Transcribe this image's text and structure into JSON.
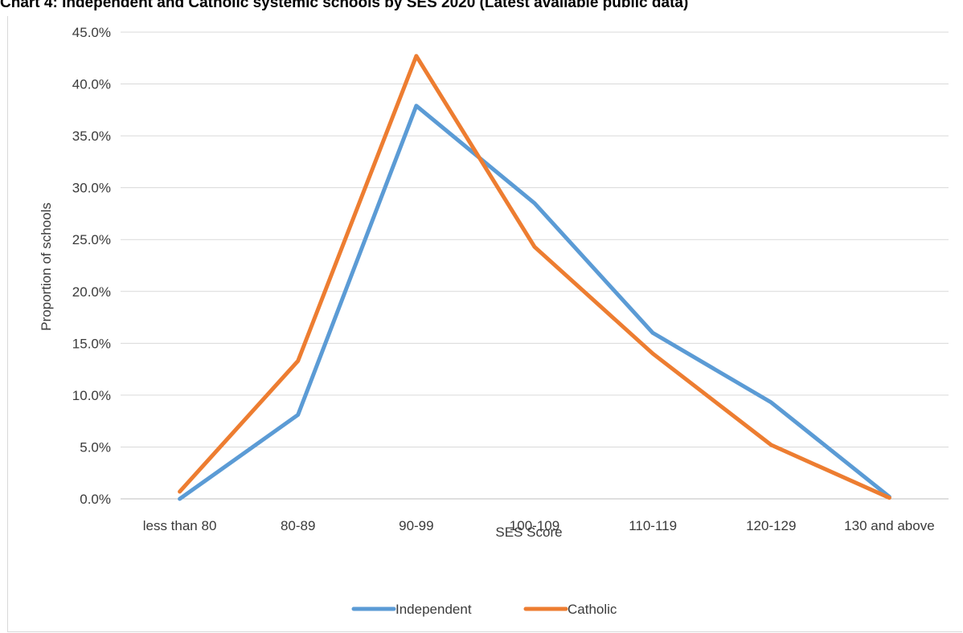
{
  "chart_data": {
    "type": "line",
    "title": "Chart 4: Independent and Catholic systemic schools by SES 2020 (Latest available public data)",
    "xlabel": "SES Score",
    "ylabel": "Proportion of schools",
    "categories": [
      "less than 80",
      "80-89",
      "90-99",
      "100-109",
      "110-119",
      "120-129",
      "130 and above"
    ],
    "ylim": [
      0,
      45
    ],
    "yticks": [
      "0.0%",
      "5.0%",
      "10.0%",
      "15.0%",
      "20.0%",
      "25.0%",
      "30.0%",
      "35.0%",
      "40.0%",
      "45.0%"
    ],
    "grid": true,
    "legend_position": "bottom",
    "series": [
      {
        "name": "Independent",
        "color": "#5b9bd5",
        "values": [
          0.0,
          8.1,
          37.9,
          28.5,
          16.0,
          9.3,
          0.2
        ]
      },
      {
        "name": "Catholic",
        "color": "#ed7d31",
        "values": [
          0.7,
          13.3,
          42.7,
          24.3,
          14.0,
          5.2,
          0.1
        ]
      }
    ]
  }
}
